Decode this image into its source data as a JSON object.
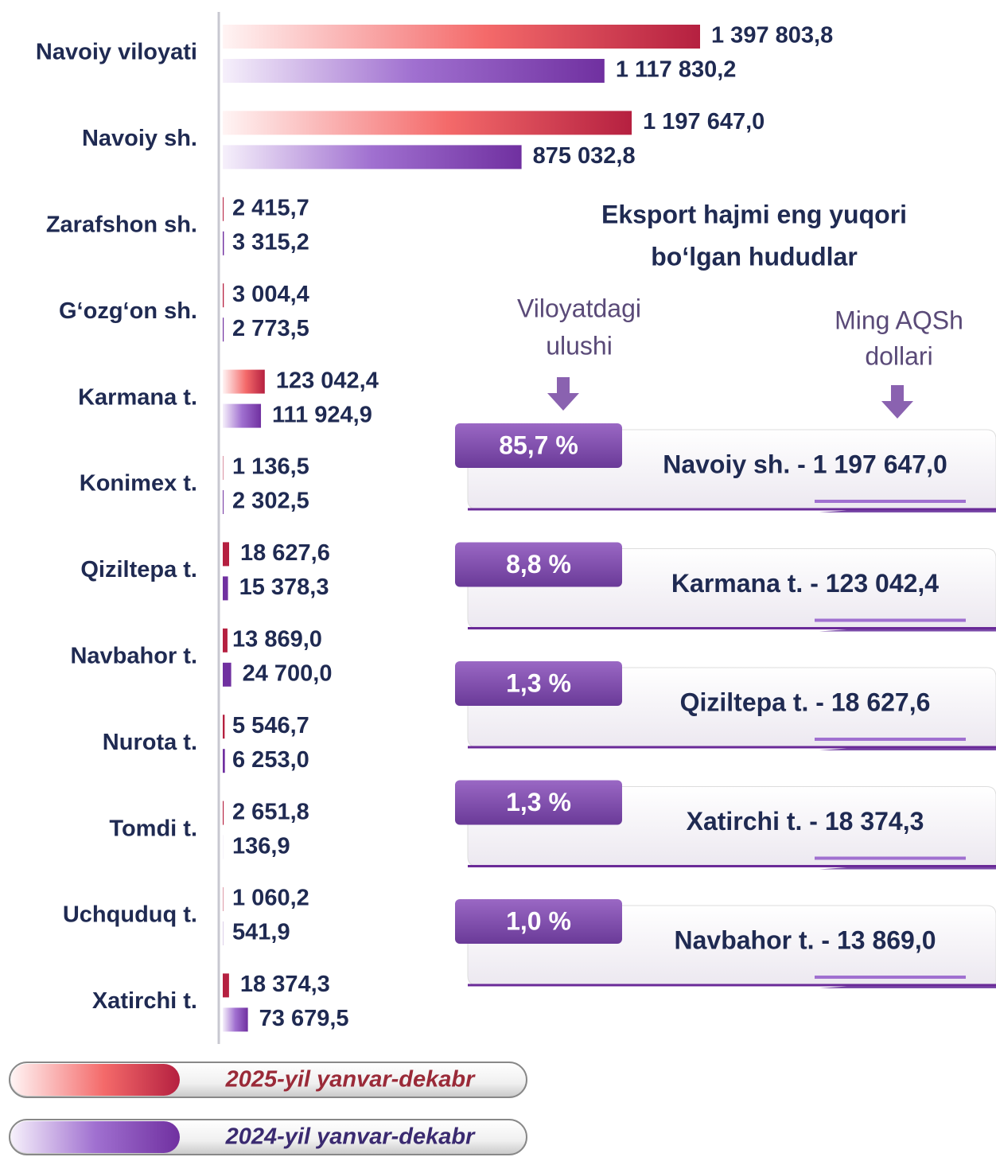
{
  "chart_data": {
    "type": "bar",
    "categories": [
      "Navoiy viloyati",
      "Navoiy sh.",
      "Zarafshon sh.",
      "G‘ozg‘on sh.",
      "Karmana t.",
      "Konimex t.",
      "Qiziltepa t.",
      "Navbahor t.",
      "Nurota t.",
      "Tomdi t.",
      "Uchquduq t.",
      "Xatirchi t."
    ],
    "series": [
      {
        "name": "2025-yil yanvar-dekabr",
        "color": "#b52040",
        "values": [
          1397803.8,
          1197647.0,
          2415.7,
          3004.4,
          123042.4,
          1136.5,
          18627.6,
          13869.0,
          5546.7,
          2651.8,
          1060.2,
          18374.3
        ],
        "value_labels": [
          "1 397 803,8",
          "1 197 647,0",
          "2 415,7",
          "3 004,4",
          "123 042,4",
          "1 136,5",
          "18 627,6",
          "13 869,0",
          "5 546,7",
          "2 651,8",
          "1 060,2",
          "18 374,3"
        ]
      },
      {
        "name": "2024-yil yanvar-dekabr",
        "color": "#7030a0",
        "values": [
          1117830.2,
          875032.8,
          3315.2,
          2773.5,
          111924.9,
          2302.5,
          15378.3,
          24700.0,
          6253.0,
          136.9,
          541.9,
          73679.5
        ],
        "value_labels": [
          "1 117 830,2",
          "875 032,8",
          "3 315,2",
          "2 773,5",
          "111 924,9",
          "2 302,5",
          "15 378,3",
          "24 700,0",
          "6 253,0",
          "136,9",
          "541,9",
          "73 679,5"
        ]
      }
    ]
  },
  "panel": {
    "title": [
      "Eksport hajmi eng yuqori",
      "bo‘lgan hududlar"
    ],
    "share_header": [
      "Viloyatdagi",
      "ulushi"
    ],
    "value_header": [
      "Ming AQSh",
      "dollari"
    ],
    "items": [
      {
        "share": "85,7 %",
        "label": "Navoiy sh. - 1 197 647,0"
      },
      {
        "share": "8,8 %",
        "label": "Karmana t. - 123 042,4"
      },
      {
        "share": "1,3 %",
        "label": "Qiziltepa t. - 18 627,6"
      },
      {
        "share": "1,3 %",
        "label": "Xatirchi t. - 18 374,3"
      },
      {
        "share": "1,0 %",
        "label": "Navbahor t. - 13 869,0"
      }
    ]
  }
}
